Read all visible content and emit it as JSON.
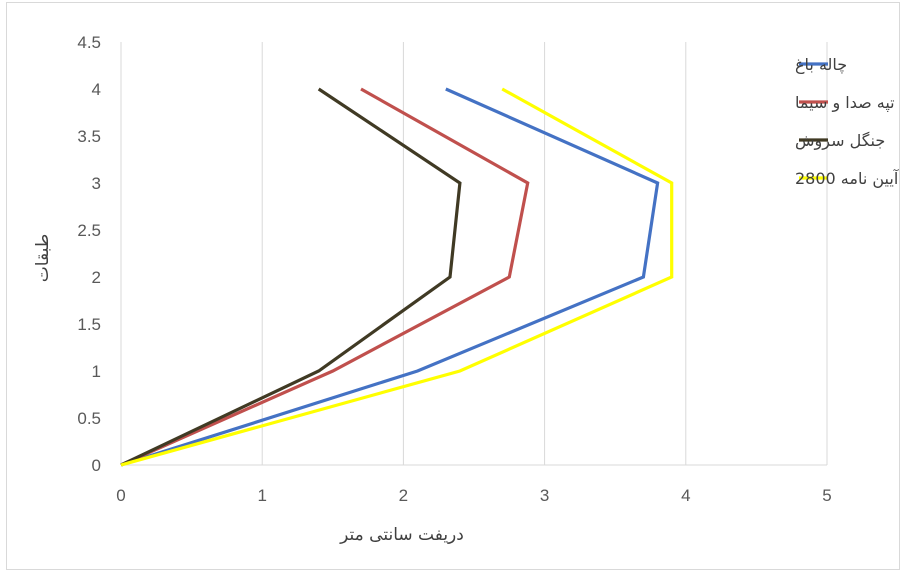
{
  "chart_data": {
    "type": "line",
    "title": "",
    "xlabel": "دریفت سانتی متر",
    "ylabel": "طبقات",
    "xlim": [
      0,
      5
    ],
    "ylim": [
      0,
      4.5
    ],
    "x_ticks": [
      "0",
      "1",
      "2",
      "3",
      "4",
      "5"
    ],
    "y_ticks": [
      "0",
      "0.5",
      "1",
      "1.5",
      "2",
      "2.5",
      "3",
      "3.5",
      "4",
      "4.5"
    ],
    "grid": "vertical",
    "legend_position": "right",
    "series": [
      {
        "name": "چاله باغ",
        "color": "#4472C4",
        "x": [
          0,
          2.1,
          3.7,
          3.8,
          2.3
        ],
        "y": [
          0,
          1,
          2,
          3,
          4
        ]
      },
      {
        "name": "تپه صدا و سیما",
        "color": "#C0504D",
        "x": [
          0,
          1.5,
          2.75,
          2.88,
          1.7
        ],
        "y": [
          0,
          1,
          2,
          3,
          4
        ]
      },
      {
        "name": "جنگل سروش",
        "color": "#403A24",
        "x": [
          0,
          1.4,
          2.33,
          2.4,
          1.4
        ],
        "y": [
          0,
          1,
          2,
          3,
          4
        ]
      },
      {
        "name": "آیین نامه 2800",
        "color": "#FFFF00",
        "x": [
          0,
          2.4,
          3.9,
          3.9,
          2.7
        ],
        "y": [
          0,
          1,
          2,
          3,
          4
        ]
      }
    ]
  }
}
